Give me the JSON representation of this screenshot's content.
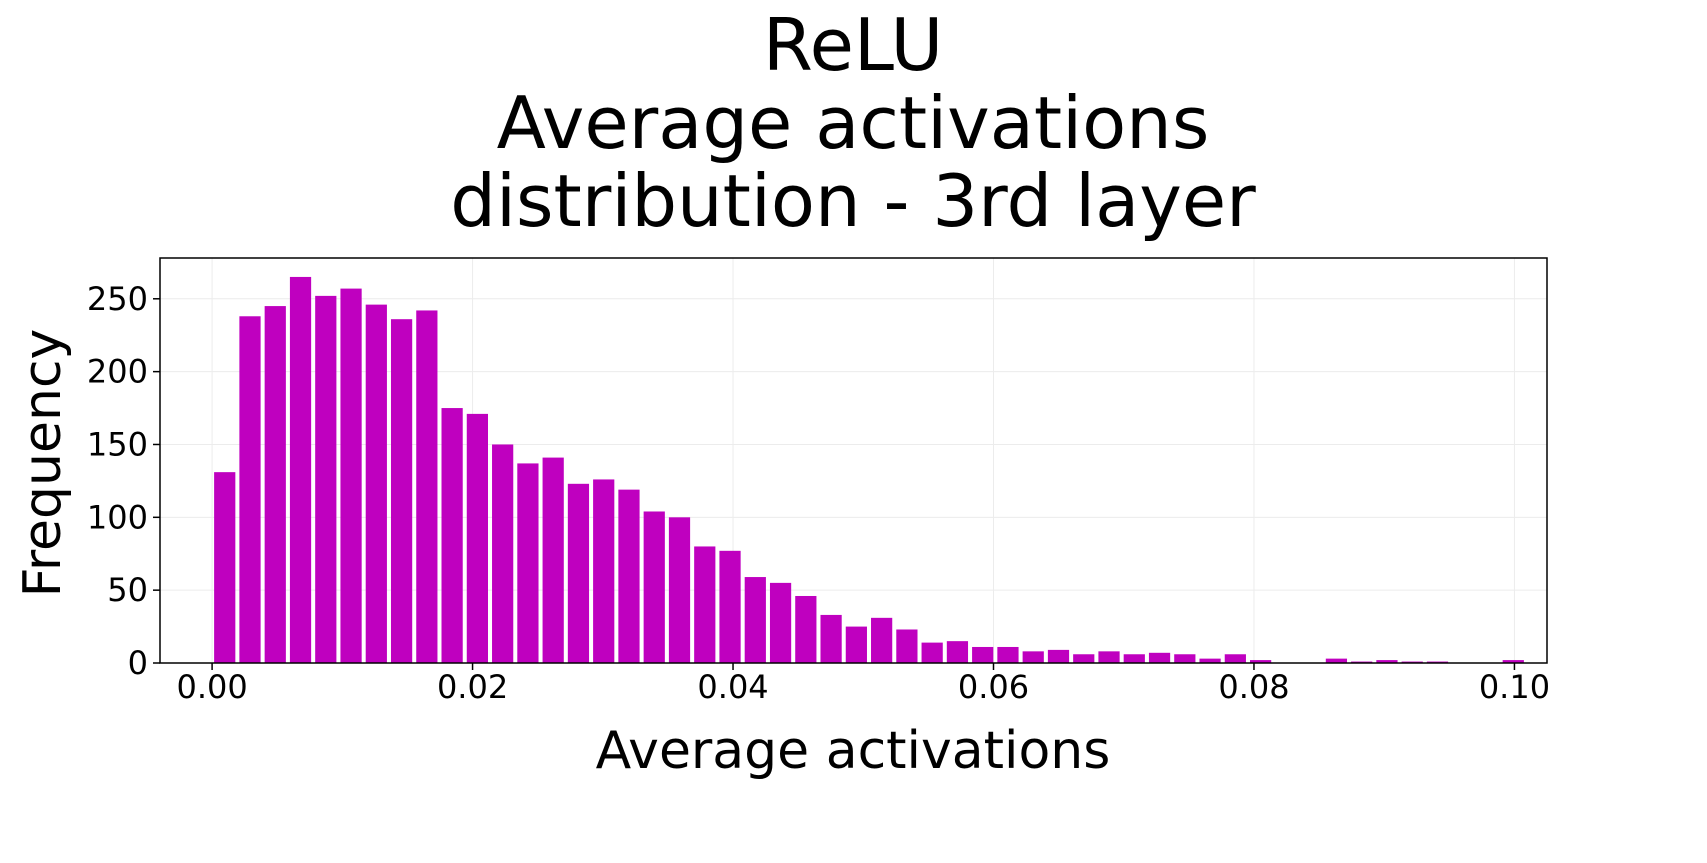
{
  "chart_data": {
    "type": "bar",
    "title": [
      "ReLU",
      "Average activations",
      "distribution - 3rd layer"
    ],
    "xlabel": "Average activations",
    "ylabel": "Frequency",
    "xlim": [
      -0.004,
      0.1025
    ],
    "ylim": [
      0,
      278
    ],
    "xticks": [
      0.0,
      0.02,
      0.04,
      0.06,
      0.08,
      0.1
    ],
    "xtick_labels": [
      "0.00",
      "0.02",
      "0.04",
      "0.06",
      "0.08",
      "0.10"
    ],
    "yticks": [
      0,
      50,
      100,
      150,
      200,
      250
    ],
    "ytick_labels": [
      "0",
      "50",
      "100",
      "150",
      "200",
      "250"
    ],
    "grid": true,
    "bar_color": "#bf00bf",
    "bin_start": 0.0,
    "bin_width": 0.00194,
    "values": [
      131,
      238,
      245,
      265,
      252,
      257,
      246,
      236,
      242,
      175,
      171,
      150,
      137,
      141,
      123,
      126,
      119,
      104,
      100,
      80,
      77,
      59,
      55,
      46,
      33,
      25,
      31,
      23,
      14,
      15,
      11,
      11,
      8,
      9,
      6,
      8,
      6,
      7,
      6,
      3,
      6,
      2,
      0,
      0,
      3,
      1,
      2,
      1,
      1,
      0,
      0,
      2
    ]
  }
}
